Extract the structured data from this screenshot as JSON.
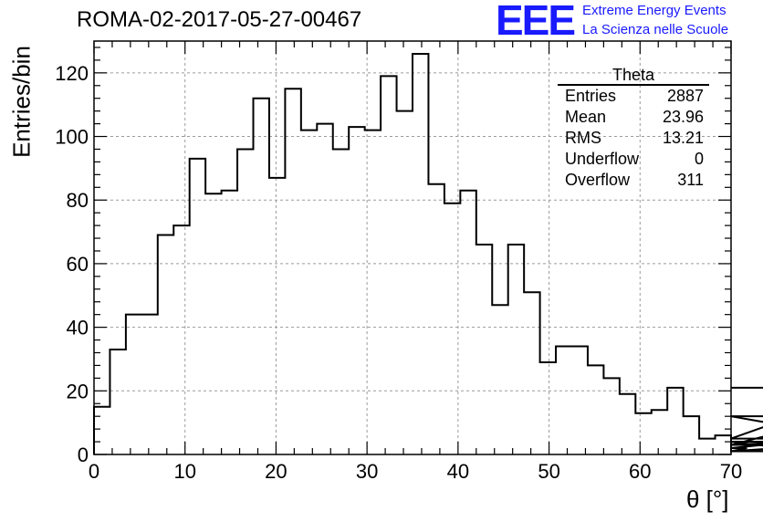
{
  "chart_data": {
    "type": "histogram",
    "title": "ROMA-02-2017-05-27-00467",
    "xlabel": "θ [°]",
    "ylabel": "Entries/bin",
    "xlim": [
      0,
      70
    ],
    "ylim": [
      0,
      130
    ],
    "bin_width": 1.75,
    "x_ticks": [
      "0",
      "10",
      "20",
      "30",
      "40",
      "50",
      "60",
      "70"
    ],
    "y_ticks": [
      "0",
      "20",
      "40",
      "60",
      "80",
      "100",
      "120"
    ],
    "grid": true,
    "values": [
      15,
      33,
      44,
      44,
      69,
      72,
      93,
      82,
      83,
      96,
      112,
      87,
      115,
      102,
      104,
      96,
      103,
      102,
      119,
      108,
      126,
      85,
      79,
      83,
      66,
      47,
      66,
      51,
      29,
      34,
      34,
      28,
      24,
      19,
      13,
      14,
      21,
      12,
      5,
      6,
      1,
      2,
      3,
      3,
      4,
      1,
      3,
      12,
      5,
      21
    ]
  },
  "stats_box": {
    "title": "Theta",
    "rows": [
      {
        "label": "Entries",
        "value": "2887"
      },
      {
        "label": "Mean",
        "value": "23.96"
      },
      {
        "label": "RMS",
        "value": "13.21"
      },
      {
        "label": "Underflow",
        "value": "0"
      },
      {
        "label": "Overflow",
        "value": "311"
      }
    ]
  },
  "logo": {
    "mark": "EEE",
    "line1": "Extreme Energy Events",
    "line2": "La Scienza nelle Scuole",
    "color": "#1a1aff"
  }
}
